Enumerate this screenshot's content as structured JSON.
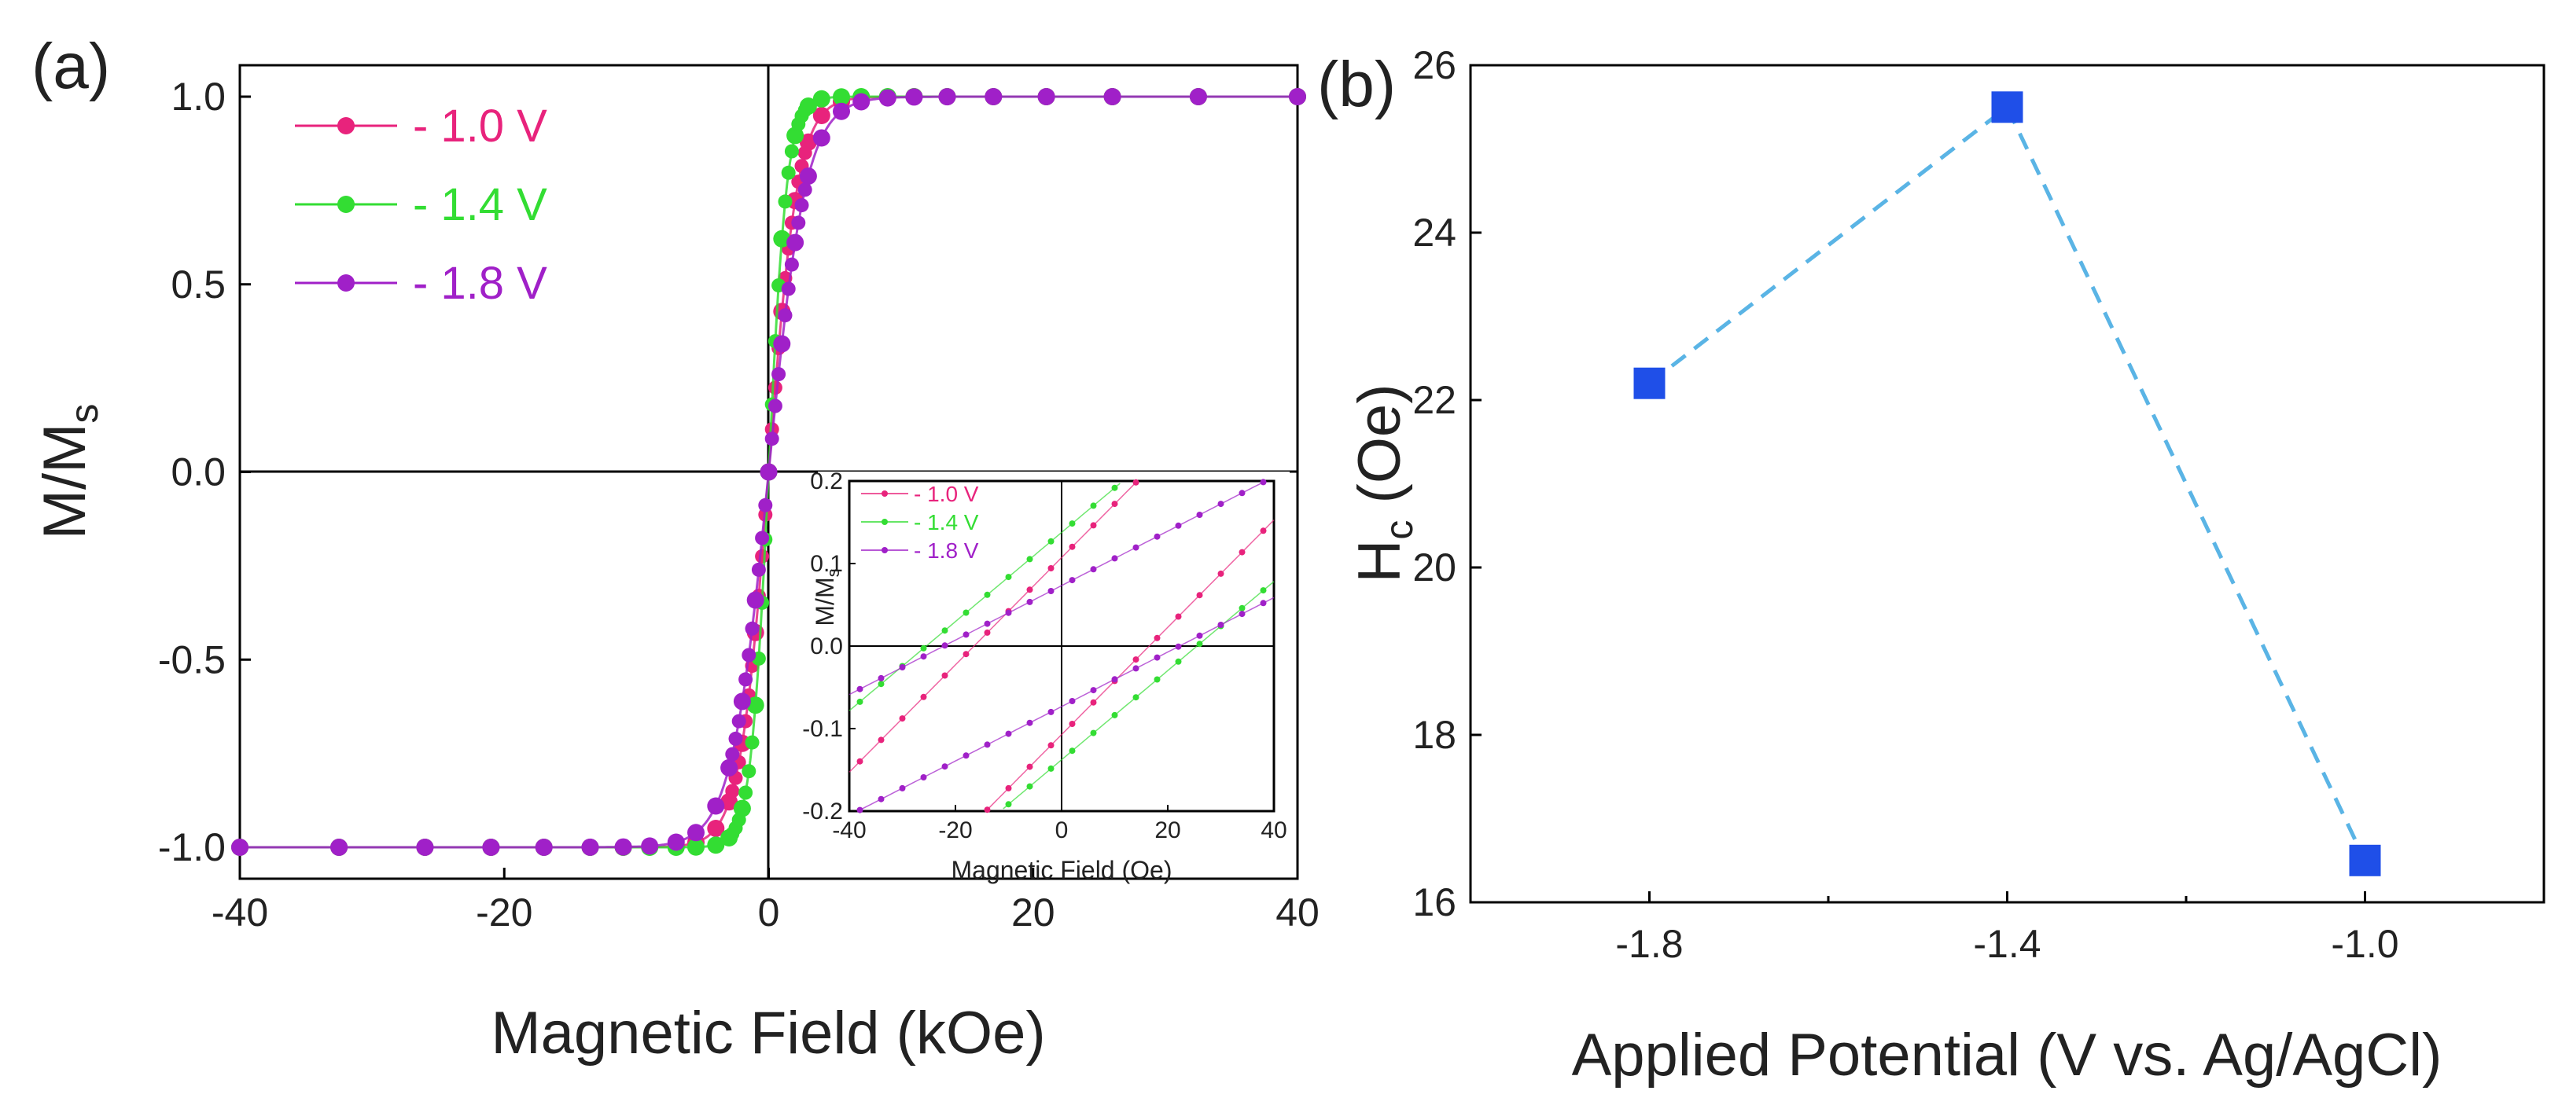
{
  "chart_data": [
    {
      "panel_label": "(a)",
      "type": "line",
      "xlabel": "Magnetic Field (kOe)",
      "ylabel": "M/M",
      "ylabel_sub": "s",
      "xlim": [
        -40,
        40
      ],
      "ylim": [
        -1.0,
        1.0
      ],
      "x_ticks": [
        -40,
        -20,
        0,
        20,
        40
      ],
      "y_ticks": [
        1.0,
        0.5,
        0.0,
        -0.5,
        -1.0
      ],
      "x_tick_labels": [
        "-40",
        "-20",
        "0",
        "20",
        "40"
      ],
      "y_tick_labels": [
        "1.0",
        "0.5",
        "0.0",
        "-0.5",
        "-1.0"
      ],
      "legend_position": "top-left",
      "series": [
        {
          "name": "- 1.0 V",
          "color": "#e8237c",
          "saturation_field_kOe": 3.5
        },
        {
          "name": "- 1.4 V",
          "color": "#33dd33",
          "saturation_field_kOe": 2.2
        },
        {
          "name": "- 1.8 V",
          "color": "#a020c8",
          "saturation_field_kOe": 4.5
        }
      ],
      "x": [
        -40,
        -32.5,
        -26,
        -21,
        -17,
        -13.5,
        -11,
        -9,
        -7,
        -5.5,
        -4,
        -3,
        -2,
        -1,
        0,
        1,
        2,
        3,
        4,
        5.5,
        7,
        9,
        11,
        13.5,
        17,
        21,
        26,
        32.5,
        40
      ],
      "inset": {
        "type": "line",
        "xlabel": "Magnetic Field (Oe)",
        "ylabel": "M/M",
        "ylabel_sub": "s",
        "xlim": [
          -40,
          40
        ],
        "ylim": [
          -0.2,
          0.2
        ],
        "x_ticks": [
          -40,
          -20,
          0,
          20,
          40
        ],
        "y_ticks": [
          0.2,
          0.1,
          0.0,
          -0.1,
          -0.2
        ],
        "x_tick_labels": [
          "-40",
          "-20",
          "0",
          "20",
          "40"
        ],
        "y_tick_labels": [
          "0.2",
          "0.1",
          "0.0",
          "-0.1",
          "-0.2"
        ],
        "legend_position": "top-left",
        "series": [
          {
            "name": "- 1.0 V",
            "color": "#e8237c",
            "coercive_field_Oe": 16.5,
            "slope_per_Oe": 0.0065
          },
          {
            "name": "- 1.4 V",
            "color": "#33dd33",
            "coercive_field_Oe": 25.5,
            "slope_per_Oe": 0.0054
          },
          {
            "name": "- 1.8 V",
            "color": "#a020c8",
            "coercive_field_Oe": 22.2,
            "slope_per_Oe": 0.0033
          }
        ],
        "x": [
          -38,
          -34,
          -30,
          -26,
          -22,
          -18,
          -14,
          -10,
          -6,
          -2,
          2,
          6,
          10,
          14,
          18,
          22,
          26,
          30,
          34,
          38
        ]
      }
    },
    {
      "panel_label": "(b)",
      "type": "scatter",
      "xlabel": "Applied Potential (V vs. Ag/AgCl)",
      "ylabel": "H",
      "ylabel_sub": "c",
      "ylabel_unit": " (Oe)",
      "xlim": [
        -2.0,
        -0.8
      ],
      "ylim": [
        16,
        26
      ],
      "x_ticks": [
        -1.8,
        -1.4,
        -1.0
      ],
      "y_ticks": [
        16,
        18,
        20,
        22,
        24,
        26
      ],
      "x_tick_labels": [
        "-1.8",
        "-1.4",
        "-1.0"
      ],
      "y_tick_labels": [
        "16",
        "18",
        "20",
        "22",
        "24",
        "26"
      ],
      "marker_color": "#1f4fe8",
      "line_color": "#5ab4e5",
      "x": [
        -1.8,
        -1.4,
        -1.0
      ],
      "y": [
        22.2,
        25.5,
        16.5
      ]
    }
  ]
}
